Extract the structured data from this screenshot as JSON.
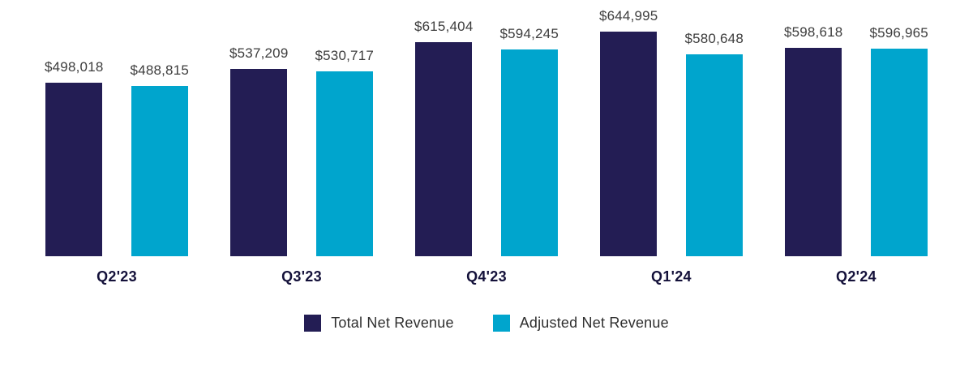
{
  "chart_data": {
    "type": "bar",
    "title": "",
    "xlabel": "",
    "ylabel": "",
    "categories": [
      "Q2'23",
      "Q3'23",
      "Q4'23",
      "Q1'24",
      "Q2'24"
    ],
    "series": [
      {
        "name": "Total Net Revenue",
        "color": "#231d54",
        "values": [
          498018,
          537209,
          615404,
          644995,
          598618
        ],
        "labels": [
          "$498,018",
          "$537,209",
          "$615,404",
          "$644,995",
          "$598,618"
        ]
      },
      {
        "name": "Adjusted Net Revenue",
        "color": "#00a5cd",
        "values": [
          488815,
          530717,
          594245,
          580648,
          596965
        ],
        "labels": [
          "$488,815",
          "$530,717",
          "$594,245",
          "$580,648",
          "$596,965"
        ]
      }
    ],
    "ylim": [
      0,
      650000
    ],
    "grid": false,
    "legend_position": "bottom",
    "value_labels_shown": true
  },
  "colors": {
    "background": "#ffffff",
    "value_label_text": "#3d3d3d",
    "category_label_text": "#14113a",
    "legend_text": "#2f2f2f"
  }
}
